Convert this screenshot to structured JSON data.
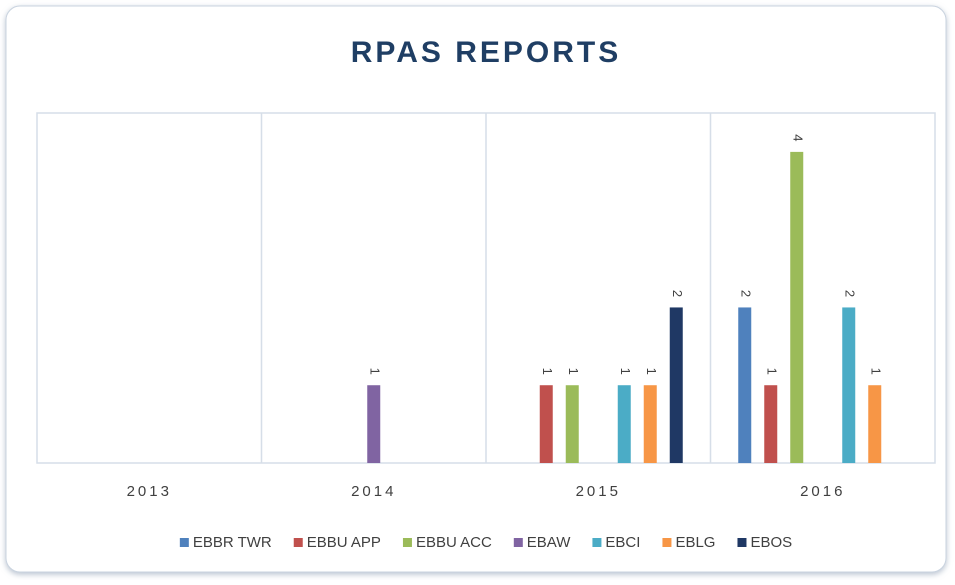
{
  "chart_data": {
    "type": "bar",
    "title": "RPAS REPORTS",
    "categories": [
      "2013",
      "2014",
      "2015",
      "2016"
    ],
    "series": [
      {
        "name": "EBBR TWR",
        "color": "#4f81bd",
        "values": [
          null,
          null,
          null,
          2
        ]
      },
      {
        "name": "EBBU APP",
        "color": "#c0504d",
        "values": [
          null,
          null,
          1,
          1
        ]
      },
      {
        "name": "EBBU ACC",
        "color": "#9bbb59",
        "values": [
          null,
          null,
          1,
          4
        ]
      },
      {
        "name": "EBAW",
        "color": "#8064a2",
        "values": [
          null,
          1,
          null,
          null
        ]
      },
      {
        "name": "EBCI",
        "color": "#4bacc6",
        "values": [
          null,
          null,
          1,
          2
        ]
      },
      {
        "name": "EBLG",
        "color": "#f79646",
        "values": [
          null,
          null,
          1,
          1
        ]
      },
      {
        "name": "EBOS",
        "color": "#1f3864",
        "values": [
          null,
          null,
          2,
          null
        ]
      }
    ],
    "ylim": [
      0,
      4.5
    ],
    "legend": "bottom"
  }
}
